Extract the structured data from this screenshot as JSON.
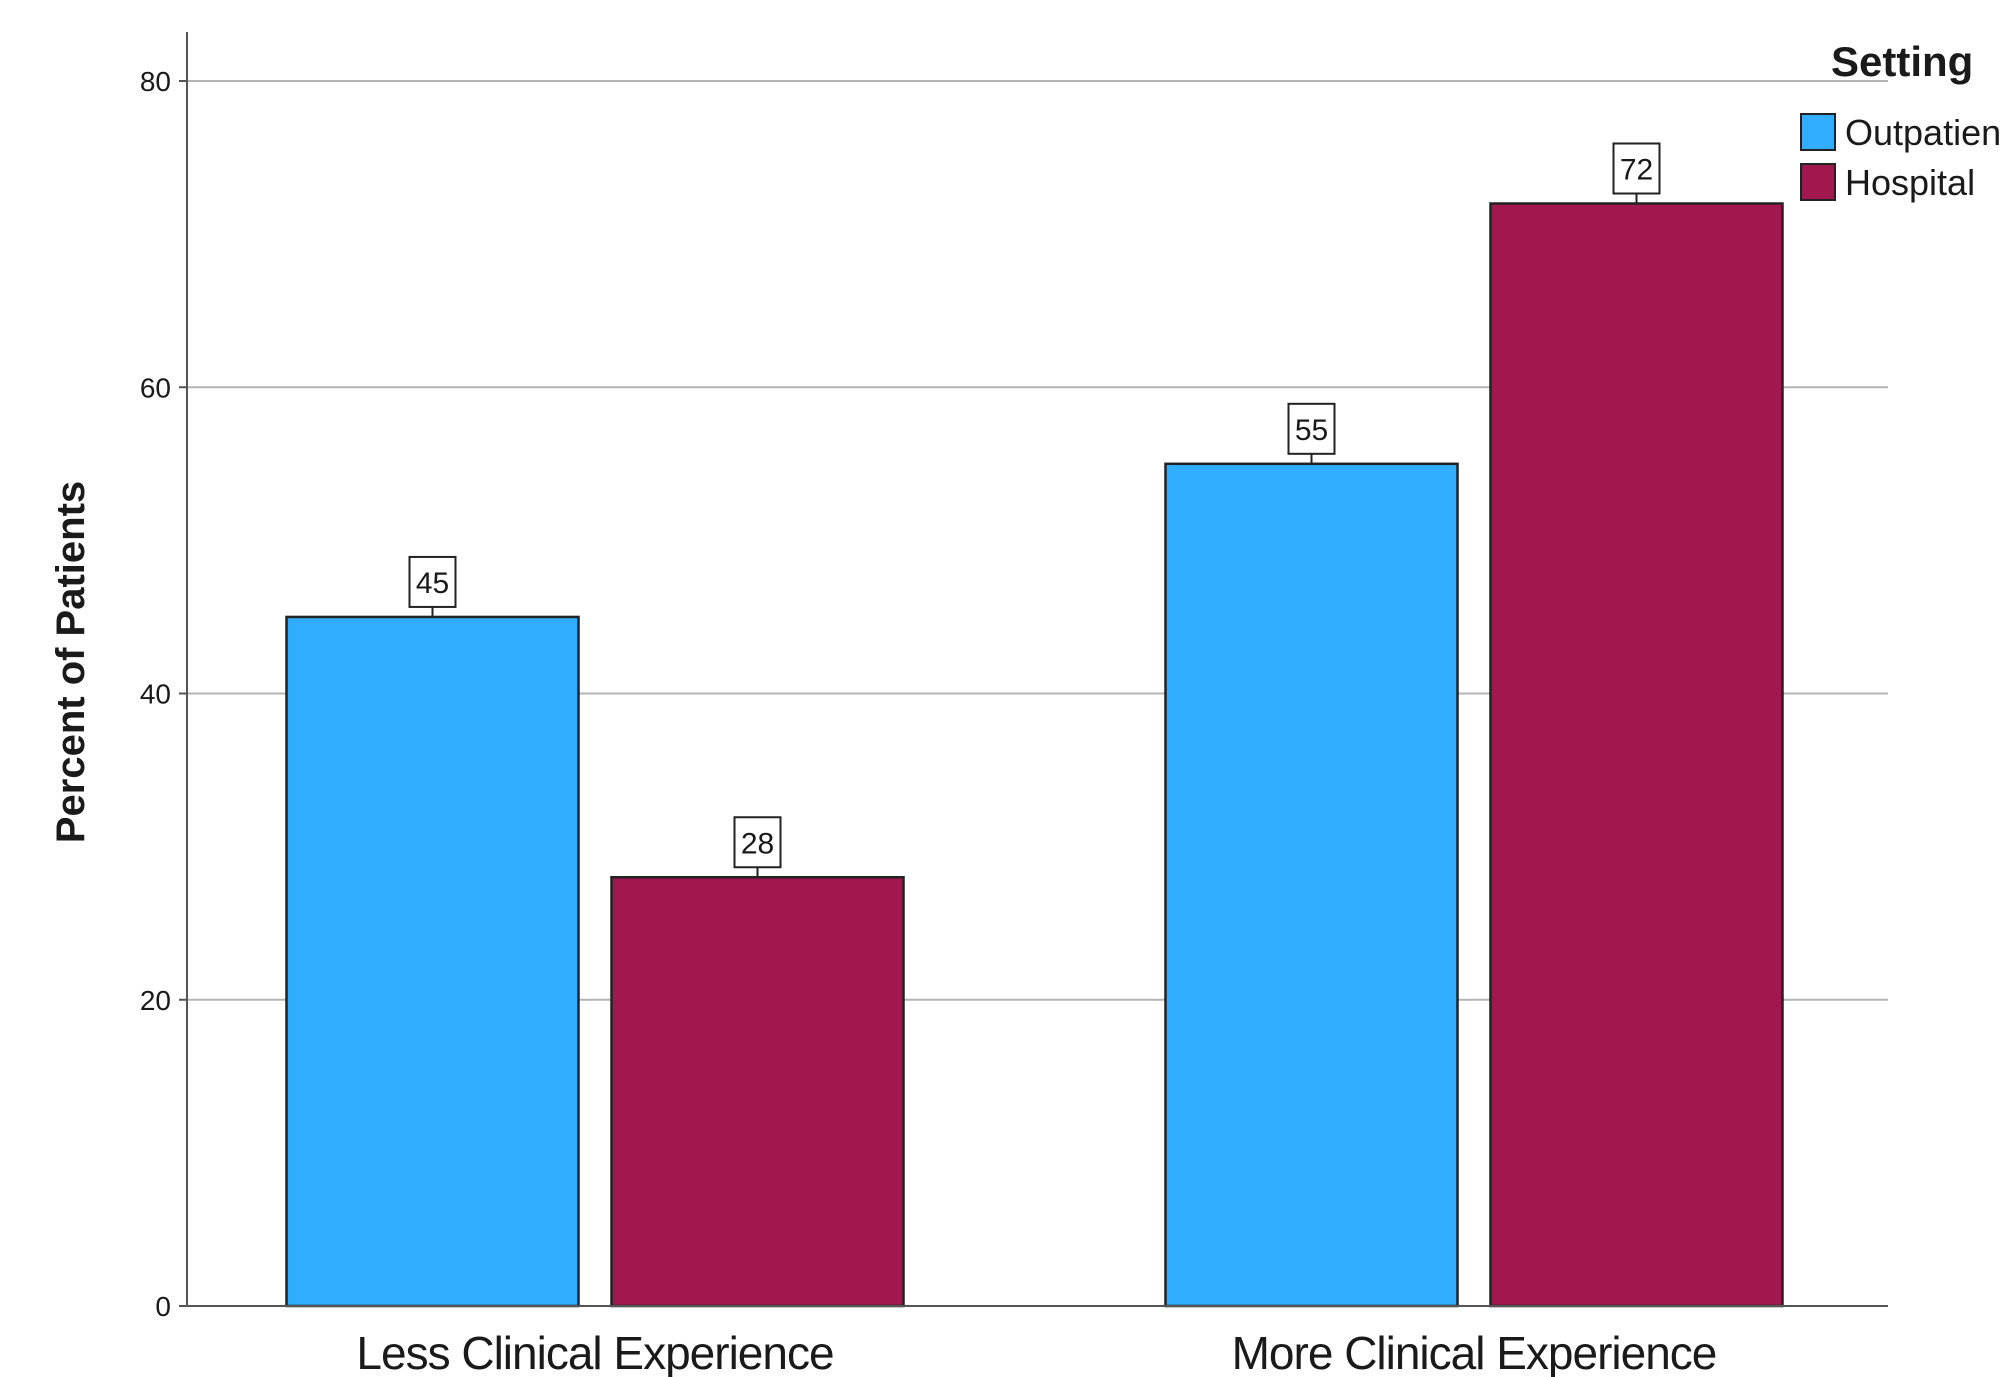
{
  "chart_data": {
    "type": "bar",
    "categories": [
      "Less Clinical Experience",
      "More Clinical Experience"
    ],
    "series": [
      {
        "name": "Outpatient",
        "values": [
          45,
          55
        ],
        "color": "#30adfe"
      },
      {
        "name": "Hospital",
        "values": [
          28,
          72
        ],
        "color": "#a0184e"
      }
    ],
    "data_labels": [
      [
        "45",
        "55"
      ],
      [
        "28",
        "72"
      ]
    ],
    "legend_title": "Setting",
    "legend_display": [
      "Outpatien",
      "Hospital"
    ],
    "ylabel": "Percent of Patients",
    "xlabel": "",
    "ylim": [
      0,
      80
    ],
    "yticks": [
      0,
      20,
      40,
      60,
      80
    ],
    "ytick_labels": [
      "0",
      "20",
      "40",
      "60",
      "80"
    ],
    "grid": true,
    "legend_position": "top-right"
  }
}
